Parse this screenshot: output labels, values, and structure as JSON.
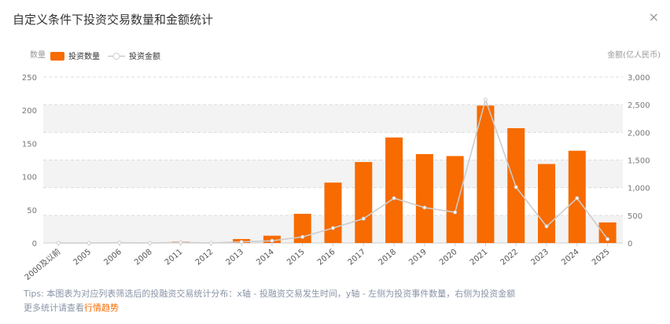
{
  "chart_data": {
    "type": "bar",
    "title": "自定义条件下投资交易数量和金额统计",
    "close": "×",
    "ylabel": "数量",
    "y2label": "金额(亿人民币)",
    "categories": [
      "2000及以前",
      "2005",
      "2006",
      "2008",
      "2011",
      "2012",
      "2013",
      "2014",
      "2015",
      "2016",
      "2017",
      "2018",
      "2019",
      "2020",
      "2021",
      "2022",
      "2023",
      "2024",
      "2025"
    ],
    "series": [
      {
        "name": "投资数量",
        "type": "bar",
        "color": "#f76b00",
        "values": [
          0,
          0,
          1,
          0,
          2,
          0,
          6,
          11,
          44,
          91,
          122,
          159,
          134,
          131,
          207,
          173,
          119,
          139,
          31
        ]
      },
      {
        "name": "投资金额",
        "type": "line",
        "axis": "y2",
        "color": "#cccccc",
        "values": [
          0,
          0,
          5,
          0,
          10,
          0,
          20,
          40,
          110,
          270,
          440,
          810,
          640,
          555,
          2590,
          1010,
          300,
          810,
          70
        ]
      }
    ],
    "ylim": [
      0,
      250
    ],
    "yticks": [
      0,
      50,
      100,
      150,
      200,
      250
    ],
    "y2lim": [
      0,
      3000
    ],
    "y2ticks": [
      0,
      500,
      {
        "value": 1000,
        "label": "1,000"
      },
      {
        "value": 1500,
        "label": "1,500"
      },
      {
        "value": 2000,
        "label": "2,000"
      },
      {
        "value": 2500,
        "label": "2,500"
      },
      {
        "value": 3000,
        "label": "3,000"
      }
    ],
    "grid": true
  },
  "footer": {
    "tips": "Tips: 本图表为对应列表筛选后的投融资交易统计分布：x轴 - 投融资交易发生时间，y轴 - 左侧为投资事件数量，右侧为投资金额",
    "more": "更多统计请查看",
    "link": "行情趋势"
  }
}
